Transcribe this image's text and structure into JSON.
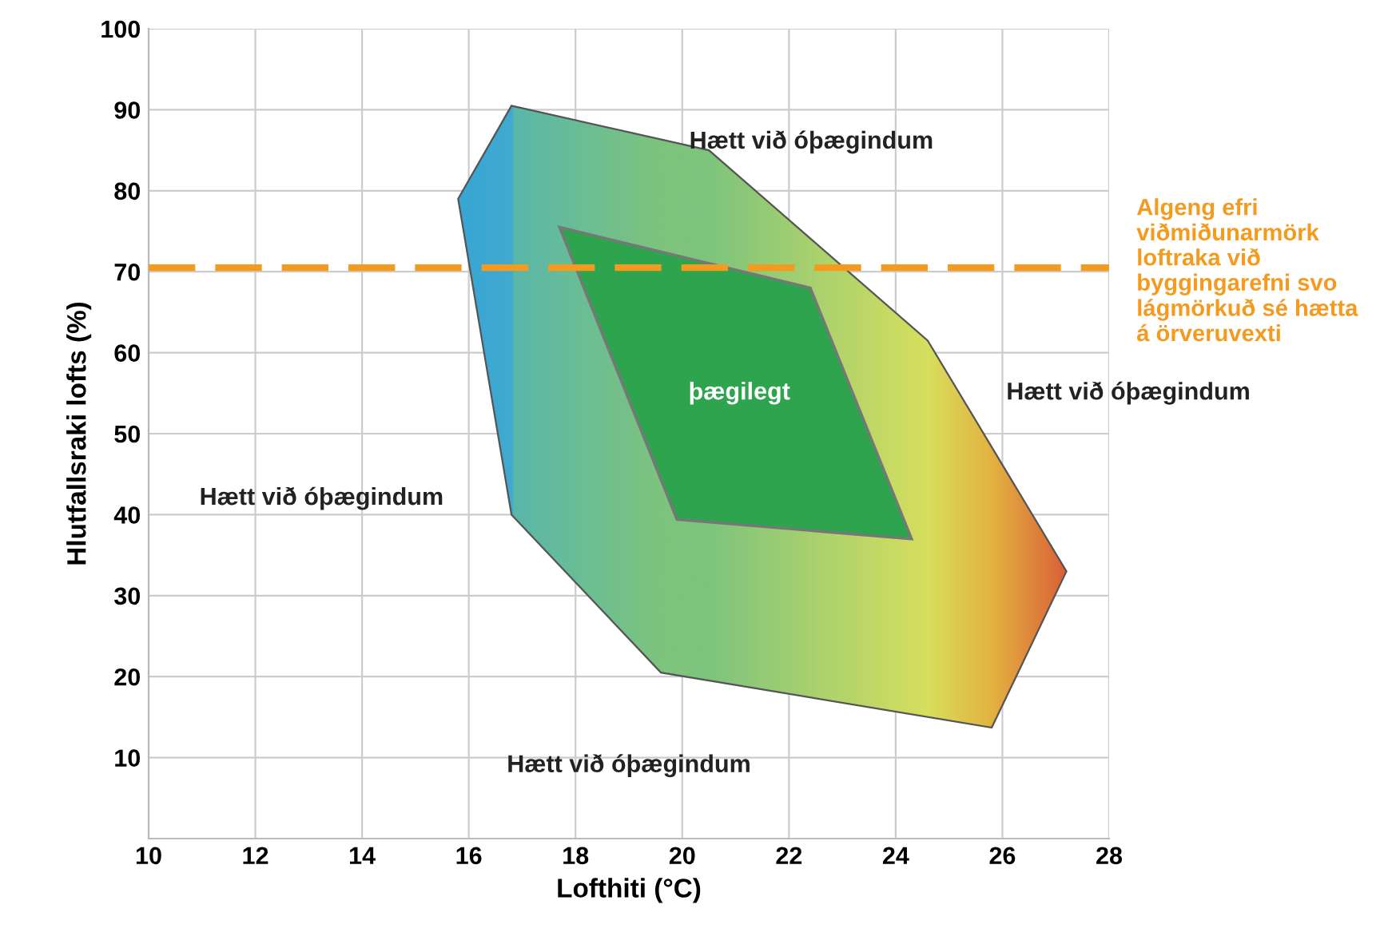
{
  "chart_data": {
    "type": "area",
    "xlabel": "Lofthiti (°C)",
    "ylabel": "Hlutfallsraki lofts (%)",
    "xlim": [
      10,
      28
    ],
    "ylim": [
      0,
      100
    ],
    "xticks": [
      10,
      12,
      14,
      16,
      18,
      20,
      22,
      24,
      26,
      28
    ],
    "yticks": [
      {
        "value": 0,
        "label": null
      },
      10,
      20,
      30,
      40,
      50,
      60,
      70,
      80,
      90,
      100
    ],
    "grid": true,
    "series": [
      {
        "x": [
          16.8,
          20.5,
          24.6,
          27.2,
          25.8,
          19.6,
          16.8,
          15.8
        ],
        "values": [
          90.5,
          85,
          61.5,
          33,
          13.7,
          20.5,
          40,
          79
        ],
        "colors": [
          "#3aa6dc",
          "#7fc47e",
          "#e4e35a",
          "#e8542e",
          "#f2b13a",
          "#7fc47e",
          "#55b6b0",
          "#2fa2e0"
        ]
      },
      {
        "x": [
          17.7,
          22.4,
          24.3,
          19.9
        ],
        "values": [
          75.5,
          68,
          37,
          39.4
        ],
        "color": "#2ea44f"
      }
    ],
    "ref_lines": [
      {
        "axis": "y",
        "value": 70.5,
        "label": "Algeng efri\nviðmiðunarmörk\nloftraka við\nbyggingarefni svo\nlágmörkuð sé hætta\ná örveruvexti",
        "color": "#f39a1f",
        "line_style": "dashed"
      }
    ],
    "annotations": [
      "Hætt við óþægindum",
      "Hætt við óþægindum",
      "Hætt við óþægindum",
      "Hætt við óþægindum",
      "þægilegt"
    ]
  }
}
